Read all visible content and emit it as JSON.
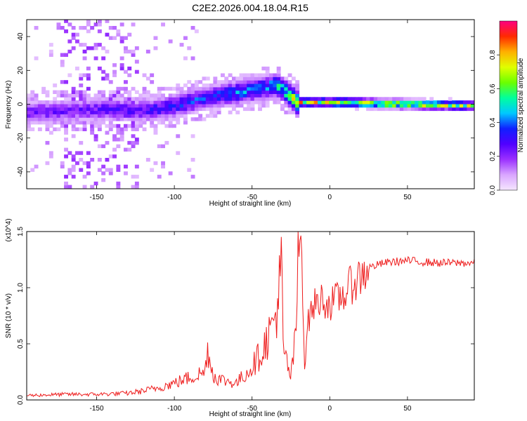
{
  "page_title": "C2E2.2026.004.18.04.R15",
  "colors": {
    "axis": "#000000",
    "snr_line": "#ee1c1c",
    "colormap": [
      "#f5e6ff",
      "#d9a6ff",
      "#9b30ff",
      "#5000ff",
      "#1020ff",
      "#00c8ff",
      "#00ff9e",
      "#6bff00",
      "#e0ff00",
      "#ffb000",
      "#ff2a00",
      "#ff0080"
    ]
  },
  "chart_data": [
    {
      "type": "heatmap",
      "title": "C2E2.2026.004.18.04.R15",
      "xlabel": "Height of straight line (km)",
      "ylabel": "Frequency (Hz)",
      "xlim": [
        -195,
        93
      ],
      "ylim": [
        -50,
        50
      ],
      "x_ticks": [
        -150,
        -100,
        -50,
        0,
        50
      ],
      "x_tick_labels": [
        "-150",
        "-100",
        "-50",
        "0",
        "50"
      ],
      "y_ticks": [
        -40,
        -20,
        0,
        20,
        40
      ],
      "y_tick_labels": [
        "-40",
        "-20",
        "0",
        "20",
        "40"
      ],
      "colorbar": {
        "label": "Normalized spectral amplitude",
        "range": [
          0,
          1
        ],
        "ticks": [
          0.0,
          0.2,
          0.4,
          0.6,
          0.8
        ],
        "tick_labels": [
          "0.0",
          "0.2",
          "0.4",
          "0.6",
          "0.8"
        ]
      },
      "ridge": {
        "description_points_x": [
          -195,
          -150,
          -120,
          -100,
          -80,
          -60,
          -45,
          -35,
          -28,
          -22,
          0,
          40,
          93
        ],
        "center_freq": [
          -6,
          -4,
          -5,
          -2,
          3,
          6,
          8,
          10,
          5,
          0,
          0,
          -1,
          -2
        ],
        "peak_amplitude": [
          0.3,
          0.3,
          0.35,
          0.4,
          0.45,
          0.5,
          0.5,
          0.6,
          0.7,
          0.9,
          0.85,
          0.85,
          0.85
        ]
      },
      "noise_region_x": [
        -175,
        -125
      ]
    },
    {
      "type": "line",
      "title": "",
      "xlabel": "Height of straight line (km)",
      "ylabel": "SNR (10 * v/v)",
      "y_scale_label": "(x10^4)",
      "xlim": [
        -195,
        93
      ],
      "ylim": [
        0,
        1.5
      ],
      "x_ticks": [
        -150,
        -100,
        -50,
        0,
        50
      ],
      "x_tick_labels": [
        "-150",
        "-100",
        "-50",
        "0",
        "50"
      ],
      "y_ticks": [
        0.0,
        0.5,
        1.0,
        1.5
      ],
      "y_tick_labels": [
        "0.0",
        "0.5",
        "1.0",
        "1.5"
      ],
      "series": [
        {
          "name": "SNR",
          "x": [
            -195,
            -170,
            -150,
            -130,
            -120,
            -110,
            -100,
            -90,
            -80,
            -79,
            -75,
            -70,
            -60,
            -55,
            -50,
            -45,
            -40,
            -36,
            -33,
            -31,
            -30,
            -28,
            -25,
            -22,
            -20,
            -18,
            -17,
            -16,
            -15,
            -13,
            -10,
            -5,
            0,
            5,
            10,
            15,
            20,
            25,
            30,
            35,
            40,
            50,
            60,
            70,
            80,
            93
          ],
          "values": [
            0.04,
            0.05,
            0.05,
            0.06,
            0.08,
            0.11,
            0.15,
            0.2,
            0.25,
            0.48,
            0.22,
            0.18,
            0.15,
            0.22,
            0.3,
            0.4,
            0.55,
            0.7,
            0.9,
            1.22,
            0.45,
            0.35,
            0.2,
            0.55,
            1.3,
            1.5,
            0.7,
            0.2,
            0.6,
            0.75,
            0.85,
            0.9,
            0.85,
            0.9,
            0.95,
            1.05,
            1.1,
            1.18,
            1.2,
            1.22,
            1.23,
            1.24,
            1.23,
            1.22,
            1.22,
            1.22
          ]
        }
      ]
    }
  ]
}
